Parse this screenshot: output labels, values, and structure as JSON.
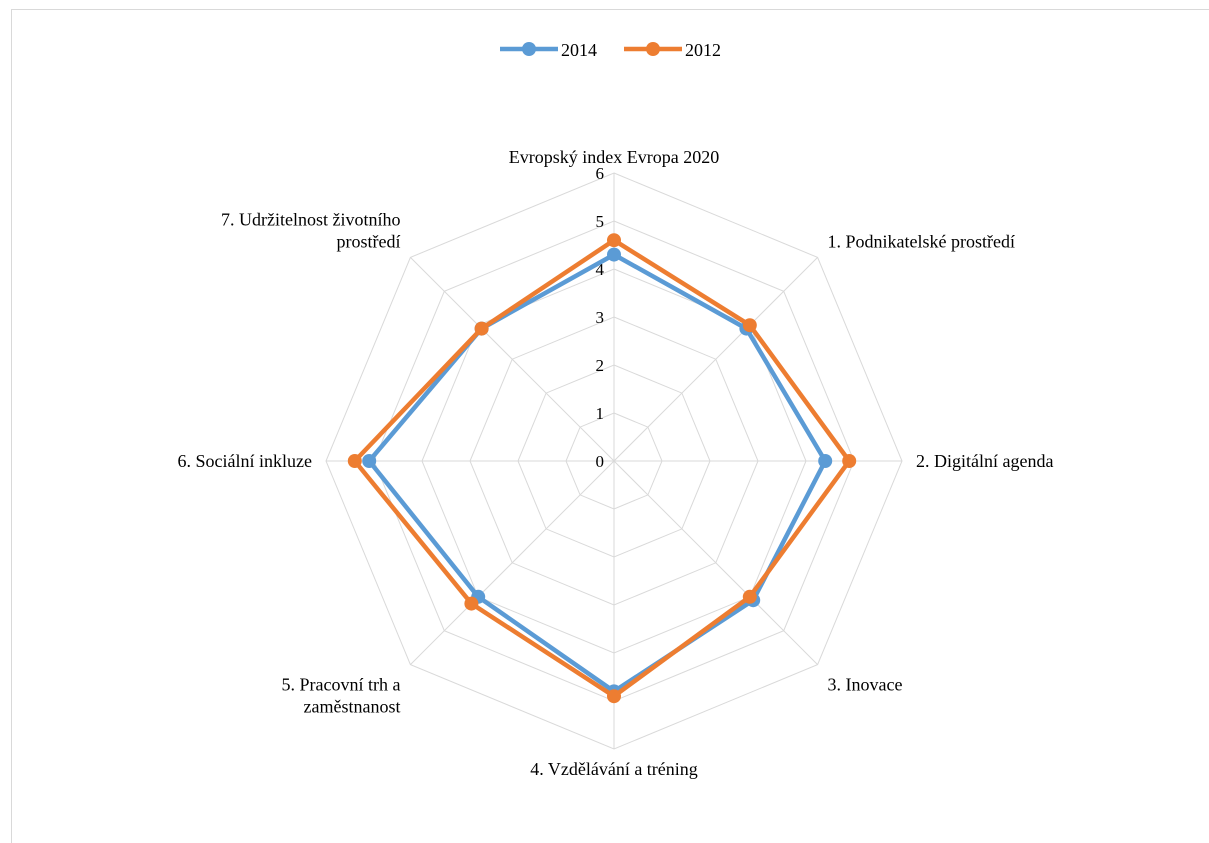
{
  "chart_data": {
    "type": "radar",
    "title": "",
    "categories": [
      "Evropský index Evropa 2020",
      "1. Podnikatelské prostředí",
      "2. Digitální agenda",
      "3. Inovace",
      "4. Vzdělávání a tréning",
      "5. Pracovní trh a zaměstnanost",
      "6. Sociální inkluze",
      "7. Udržitelnost životního prostředí"
    ],
    "label_lines": [
      [
        "Evropský index Evropa 2020"
      ],
      [
        "1. Podnikatelské prostředí"
      ],
      [
        "2. Digitální agenda"
      ],
      [
        "3. Inovace"
      ],
      [
        "4. Vzdělávání a tréning"
      ],
      [
        "5. Pracovní trh a",
        "zaměstnanost"
      ],
      [
        "6. Sociální inkluze"
      ],
      [
        "7. Udržitelnost životního",
        "prostředí"
      ]
    ],
    "rlim": [
      0,
      6
    ],
    "ticks": [
      0,
      1,
      2,
      3,
      4,
      5,
      6
    ],
    "grid": true,
    "legend_position": "top",
    "series": [
      {
        "name": "2014",
        "color": "#5b9bd5",
        "values": [
          4.3,
          3.9,
          4.4,
          4.1,
          4.8,
          4.0,
          5.1,
          3.9
        ]
      },
      {
        "name": "2012",
        "color": "#ed7d31",
        "values": [
          4.6,
          4.0,
          4.9,
          4.0,
          4.9,
          4.2,
          5.4,
          3.9
        ]
      }
    ]
  }
}
